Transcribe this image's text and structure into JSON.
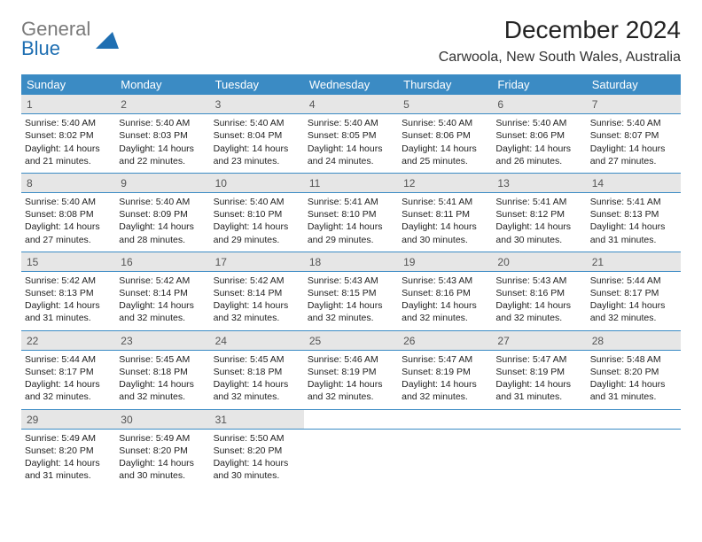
{
  "logo": {
    "line1_gray": "General",
    "line2_blue": "Blue",
    "shape_color": "#1f6fb2"
  },
  "title": "December 2024",
  "location": "Carwoola, New South Wales, Australia",
  "colors": {
    "header_bg": "#3b8bc4",
    "header_text": "#ffffff",
    "daynum_bg": "#e6e6e6",
    "daynum_text": "#555555",
    "cell_text": "#222222",
    "row_border": "#3b8bc4",
    "background": "#ffffff"
  },
  "columns": [
    "Sunday",
    "Monday",
    "Tuesday",
    "Wednesday",
    "Thursday",
    "Friday",
    "Saturday"
  ],
  "weeks": [
    [
      {
        "num": "1",
        "sunrise": "Sunrise: 5:40 AM",
        "sunset": "Sunset: 8:02 PM",
        "day1": "Daylight: 14 hours",
        "day2": "and 21 minutes."
      },
      {
        "num": "2",
        "sunrise": "Sunrise: 5:40 AM",
        "sunset": "Sunset: 8:03 PM",
        "day1": "Daylight: 14 hours",
        "day2": "and 22 minutes."
      },
      {
        "num": "3",
        "sunrise": "Sunrise: 5:40 AM",
        "sunset": "Sunset: 8:04 PM",
        "day1": "Daylight: 14 hours",
        "day2": "and 23 minutes."
      },
      {
        "num": "4",
        "sunrise": "Sunrise: 5:40 AM",
        "sunset": "Sunset: 8:05 PM",
        "day1": "Daylight: 14 hours",
        "day2": "and 24 minutes."
      },
      {
        "num": "5",
        "sunrise": "Sunrise: 5:40 AM",
        "sunset": "Sunset: 8:06 PM",
        "day1": "Daylight: 14 hours",
        "day2": "and 25 minutes."
      },
      {
        "num": "6",
        "sunrise": "Sunrise: 5:40 AM",
        "sunset": "Sunset: 8:06 PM",
        "day1": "Daylight: 14 hours",
        "day2": "and 26 minutes."
      },
      {
        "num": "7",
        "sunrise": "Sunrise: 5:40 AM",
        "sunset": "Sunset: 8:07 PM",
        "day1": "Daylight: 14 hours",
        "day2": "and 27 minutes."
      }
    ],
    [
      {
        "num": "8",
        "sunrise": "Sunrise: 5:40 AM",
        "sunset": "Sunset: 8:08 PM",
        "day1": "Daylight: 14 hours",
        "day2": "and 27 minutes."
      },
      {
        "num": "9",
        "sunrise": "Sunrise: 5:40 AM",
        "sunset": "Sunset: 8:09 PM",
        "day1": "Daylight: 14 hours",
        "day2": "and 28 minutes."
      },
      {
        "num": "10",
        "sunrise": "Sunrise: 5:40 AM",
        "sunset": "Sunset: 8:10 PM",
        "day1": "Daylight: 14 hours",
        "day2": "and 29 minutes."
      },
      {
        "num": "11",
        "sunrise": "Sunrise: 5:41 AM",
        "sunset": "Sunset: 8:10 PM",
        "day1": "Daylight: 14 hours",
        "day2": "and 29 minutes."
      },
      {
        "num": "12",
        "sunrise": "Sunrise: 5:41 AM",
        "sunset": "Sunset: 8:11 PM",
        "day1": "Daylight: 14 hours",
        "day2": "and 30 minutes."
      },
      {
        "num": "13",
        "sunrise": "Sunrise: 5:41 AM",
        "sunset": "Sunset: 8:12 PM",
        "day1": "Daylight: 14 hours",
        "day2": "and 30 minutes."
      },
      {
        "num": "14",
        "sunrise": "Sunrise: 5:41 AM",
        "sunset": "Sunset: 8:13 PM",
        "day1": "Daylight: 14 hours",
        "day2": "and 31 minutes."
      }
    ],
    [
      {
        "num": "15",
        "sunrise": "Sunrise: 5:42 AM",
        "sunset": "Sunset: 8:13 PM",
        "day1": "Daylight: 14 hours",
        "day2": "and 31 minutes."
      },
      {
        "num": "16",
        "sunrise": "Sunrise: 5:42 AM",
        "sunset": "Sunset: 8:14 PM",
        "day1": "Daylight: 14 hours",
        "day2": "and 32 minutes."
      },
      {
        "num": "17",
        "sunrise": "Sunrise: 5:42 AM",
        "sunset": "Sunset: 8:14 PM",
        "day1": "Daylight: 14 hours",
        "day2": "and 32 minutes."
      },
      {
        "num": "18",
        "sunrise": "Sunrise: 5:43 AM",
        "sunset": "Sunset: 8:15 PM",
        "day1": "Daylight: 14 hours",
        "day2": "and 32 minutes."
      },
      {
        "num": "19",
        "sunrise": "Sunrise: 5:43 AM",
        "sunset": "Sunset: 8:16 PM",
        "day1": "Daylight: 14 hours",
        "day2": "and 32 minutes."
      },
      {
        "num": "20",
        "sunrise": "Sunrise: 5:43 AM",
        "sunset": "Sunset: 8:16 PM",
        "day1": "Daylight: 14 hours",
        "day2": "and 32 minutes."
      },
      {
        "num": "21",
        "sunrise": "Sunrise: 5:44 AM",
        "sunset": "Sunset: 8:17 PM",
        "day1": "Daylight: 14 hours",
        "day2": "and 32 minutes."
      }
    ],
    [
      {
        "num": "22",
        "sunrise": "Sunrise: 5:44 AM",
        "sunset": "Sunset: 8:17 PM",
        "day1": "Daylight: 14 hours",
        "day2": "and 32 minutes."
      },
      {
        "num": "23",
        "sunrise": "Sunrise: 5:45 AM",
        "sunset": "Sunset: 8:18 PM",
        "day1": "Daylight: 14 hours",
        "day2": "and 32 minutes."
      },
      {
        "num": "24",
        "sunrise": "Sunrise: 5:45 AM",
        "sunset": "Sunset: 8:18 PM",
        "day1": "Daylight: 14 hours",
        "day2": "and 32 minutes."
      },
      {
        "num": "25",
        "sunrise": "Sunrise: 5:46 AM",
        "sunset": "Sunset: 8:19 PM",
        "day1": "Daylight: 14 hours",
        "day2": "and 32 minutes."
      },
      {
        "num": "26",
        "sunrise": "Sunrise: 5:47 AM",
        "sunset": "Sunset: 8:19 PM",
        "day1": "Daylight: 14 hours",
        "day2": "and 32 minutes."
      },
      {
        "num": "27",
        "sunrise": "Sunrise: 5:47 AM",
        "sunset": "Sunset: 8:19 PM",
        "day1": "Daylight: 14 hours",
        "day2": "and 31 minutes."
      },
      {
        "num": "28",
        "sunrise": "Sunrise: 5:48 AM",
        "sunset": "Sunset: 8:20 PM",
        "day1": "Daylight: 14 hours",
        "day2": "and 31 minutes."
      }
    ],
    [
      {
        "num": "29",
        "sunrise": "Sunrise: 5:49 AM",
        "sunset": "Sunset: 8:20 PM",
        "day1": "Daylight: 14 hours",
        "day2": "and 31 minutes."
      },
      {
        "num": "30",
        "sunrise": "Sunrise: 5:49 AM",
        "sunset": "Sunset: 8:20 PM",
        "day1": "Daylight: 14 hours",
        "day2": "and 30 minutes."
      },
      {
        "num": "31",
        "sunrise": "Sunrise: 5:50 AM",
        "sunset": "Sunset: 8:20 PM",
        "day1": "Daylight: 14 hours",
        "day2": "and 30 minutes."
      },
      null,
      null,
      null,
      null
    ]
  ]
}
